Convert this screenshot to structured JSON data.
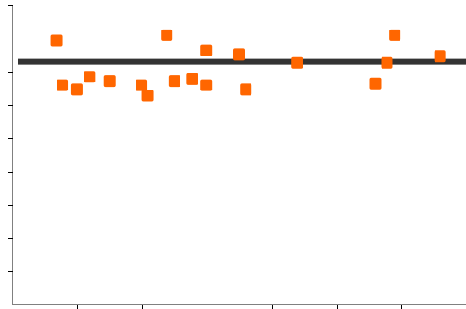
{
  "chart_data": {
    "type": "scatter",
    "title": "",
    "xlabel": "",
    "ylabel": "",
    "xlim": [
      0,
      7
    ],
    "ylim": [
      0,
      9
    ],
    "grid": false,
    "x_ticks": [
      1,
      2,
      3,
      4,
      5,
      6
    ],
    "y_ticks": [
      1,
      2,
      3,
      4,
      5,
      6,
      7,
      8,
      9
    ],
    "reference_line": {
      "y": 7.3,
      "color": "#333333"
    },
    "series": [
      {
        "color": "#ff6600",
        "marker": "square",
        "points": [
          {
            "x": 0.68,
            "y": 7.95
          },
          {
            "x": 0.77,
            "y": 6.6
          },
          {
            "x": 0.99,
            "y": 6.47
          },
          {
            "x": 1.19,
            "y": 6.85
          },
          {
            "x": 1.5,
            "y": 6.72
          },
          {
            "x": 1.99,
            "y": 6.6
          },
          {
            "x": 2.08,
            "y": 6.28
          },
          {
            "x": 2.38,
            "y": 8.1
          },
          {
            "x": 2.5,
            "y": 6.72
          },
          {
            "x": 2.77,
            "y": 6.78
          },
          {
            "x": 2.99,
            "y": 7.65
          },
          {
            "x": 2.99,
            "y": 6.6
          },
          {
            "x": 3.5,
            "y": 7.52
          },
          {
            "x": 3.6,
            "y": 6.47
          },
          {
            "x": 4.39,
            "y": 7.27
          },
          {
            "x": 5.6,
            "y": 6.65
          },
          {
            "x": 5.78,
            "y": 7.27
          },
          {
            "x": 5.9,
            "y": 8.1
          },
          {
            "x": 6.6,
            "y": 7.47
          }
        ]
      }
    ]
  }
}
